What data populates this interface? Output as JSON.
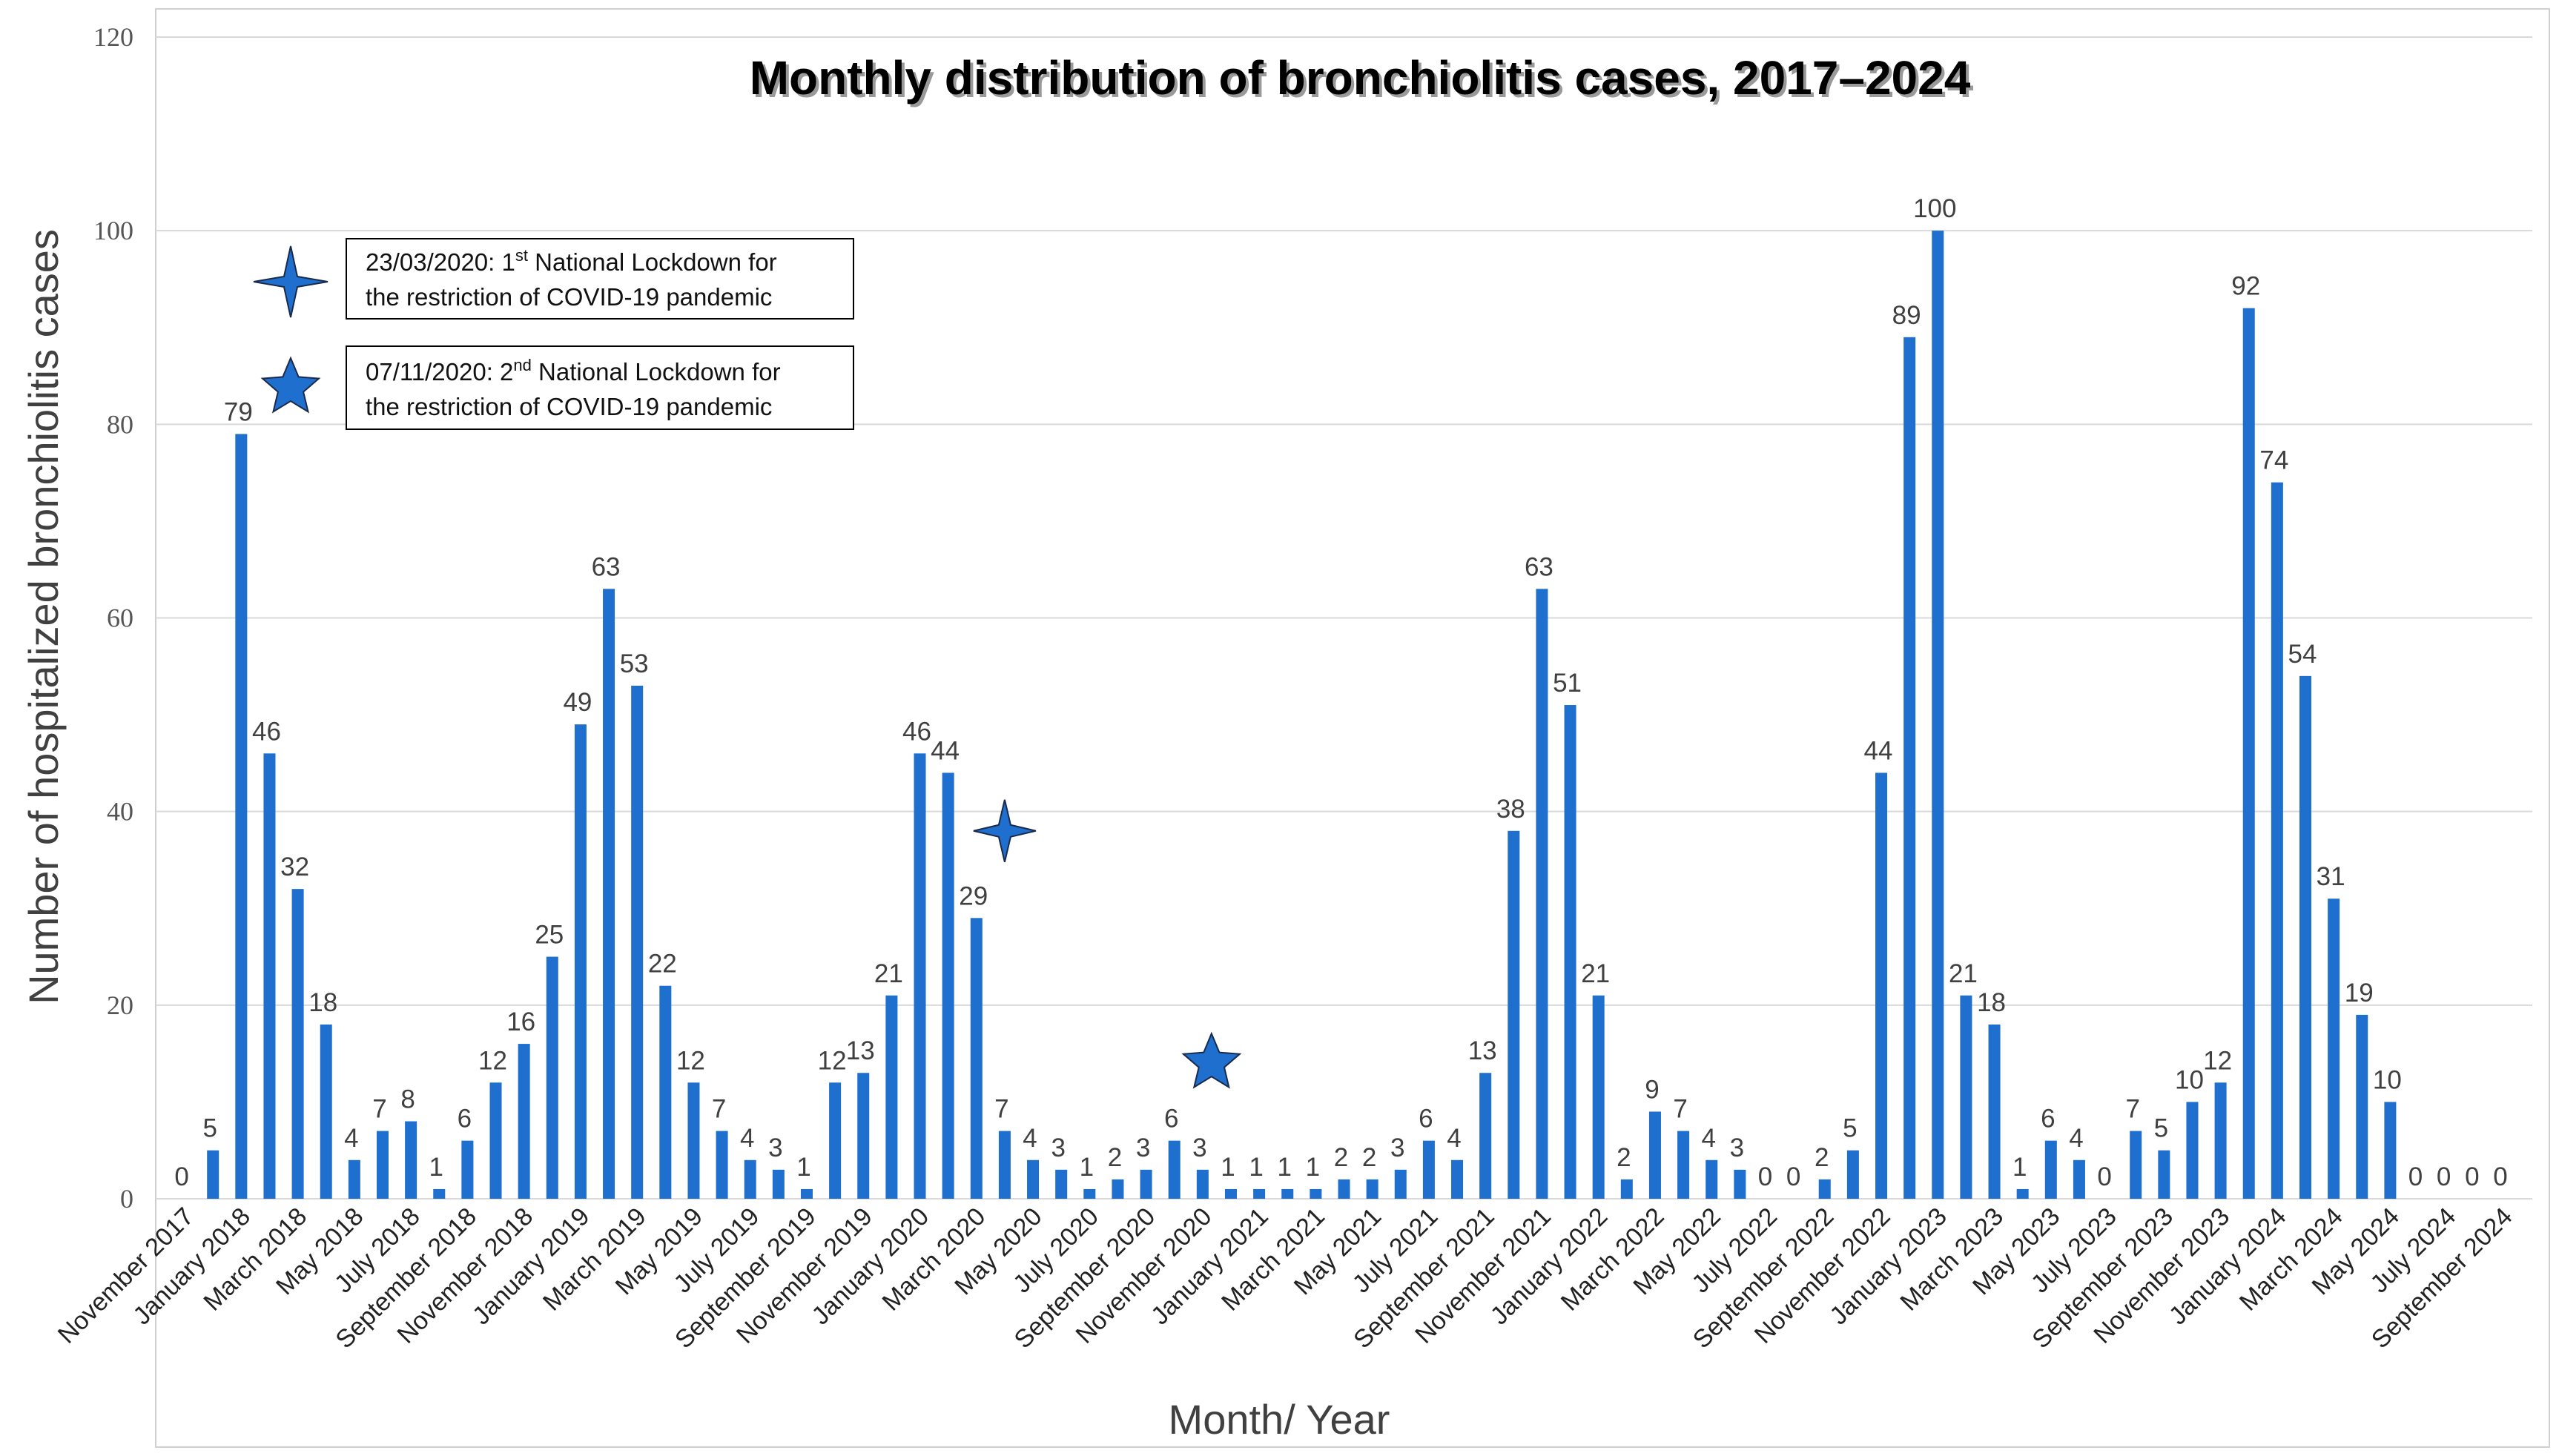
{
  "chart_data": {
    "type": "bar",
    "title": "Monthly distribution of bronchiolitis cases, 2017–2024",
    "xlabel": "Month/ Year",
    "ylabel": "Number of hospitalized bronchiolitis cases",
    "ylim": [
      0,
      120
    ],
    "yticks": [
      0,
      20,
      40,
      60,
      80,
      100,
      120
    ],
    "grid": true,
    "series_color": "#1f6fce",
    "categories": [
      "November 2017",
      "December 2017",
      "January 2018",
      "February 2018",
      "March 2018",
      "April 2018",
      "May 2018",
      "June 2018",
      "July 2018",
      "August 2018",
      "September 2018",
      "October 2018",
      "November 2018",
      "December 2018",
      "January 2019",
      "February 2019",
      "March 2019",
      "April 2019",
      "May 2019",
      "June 2019",
      "July 2019",
      "August 2019",
      "September 2019",
      "October 2019",
      "November 2019",
      "December 2019",
      "January 2020",
      "February 2020",
      "March 2020",
      "April 2020",
      "May 2020",
      "June 2020",
      "July 2020",
      "August 2020",
      "September 2020",
      "October 2020",
      "November 2020",
      "December 2020",
      "January 2021",
      "February 2021",
      "March 2021",
      "April 2021",
      "May 2021",
      "June 2021",
      "July 2021",
      "August 2021",
      "September 2021",
      "October 2021",
      "November 2021",
      "December 2021",
      "January 2022",
      "February 2022",
      "March 2022",
      "April 2022",
      "May 2022",
      "June 2022",
      "July 2022",
      "August 2022",
      "September 2022",
      "October 2022",
      "November 2022",
      "December 2022",
      "January 2023",
      "February 2023",
      "March 2023",
      "April 2023",
      "May 2023",
      "June 2023",
      "July 2023",
      "August 2023",
      "September 2023",
      "October 2023",
      "November 2023",
      "December 2023",
      "January 2024",
      "February 2024",
      "March 2024",
      "April 2024",
      "May 2024",
      "June 2024",
      "July 2024",
      "August 2024",
      "September 2024"
    ],
    "visible_tick_labels": [
      "November 2017",
      "January 2018",
      "March 2018",
      "May 2018",
      "July 2018",
      "September 2018",
      "November 2018",
      "January 2019",
      "March 2019",
      "May 2019",
      "July 2019",
      "September 2019",
      "November 2019",
      "January 2020",
      "March 2020",
      "May 2020",
      "July 2020",
      "September 2020",
      "November 2020",
      "January 2021",
      "March 2021",
      "May 2021",
      "July 2021",
      "September 2021",
      "November 2021",
      "January 2022",
      "March 2022",
      "May 2022",
      "July 2022",
      "September 2022",
      "November 2022",
      "January 2023",
      "March 2023",
      "May 2023",
      "July 2023",
      "September 2023",
      "November 2023",
      "January 2024",
      "March 2024",
      "May 2024",
      "July 2024",
      "September 2024"
    ],
    "values": [
      0,
      5,
      79,
      46,
      32,
      18,
      4,
      7,
      8,
      1,
      6,
      12,
      16,
      25,
      49,
      63,
      53,
      22,
      12,
      7,
      4,
      3,
      1,
      12,
      13,
      21,
      46,
      44,
      29,
      7,
      4,
      3,
      1,
      2,
      3,
      6,
      3,
      1,
      1,
      1,
      1,
      2,
      2,
      3,
      6,
      4,
      13,
      38,
      63,
      51,
      21,
      2,
      9,
      7,
      4,
      3,
      0,
      0,
      2,
      5,
      44,
      89,
      100,
      21,
      18,
      1,
      6,
      4,
      0,
      7,
      5,
      10,
      12,
      92,
      74,
      54,
      31,
      19,
      10,
      0,
      0,
      0,
      0
    ],
    "annotations": [
      {
        "marker": "four-point-star-icon",
        "date": "23/03/2020",
        "line1_prefix": "23/03/2020: 1",
        "line1_sup": "st",
        "line1_suffix": " National Lockdown for",
        "line2": "the restriction of COVID-19 pandemic",
        "at_category": "April 2020",
        "at_value": 38
      },
      {
        "marker": "five-point-star-icon",
        "date": "07/11/2020",
        "line1_prefix": "07/11/2020: 2",
        "line1_sup": "nd",
        "line1_suffix": " National Lockdown for",
        "line2": "the restriction of COVID-19 pandemic",
        "at_category": "November 2020",
        "at_value": 14
      }
    ]
  }
}
